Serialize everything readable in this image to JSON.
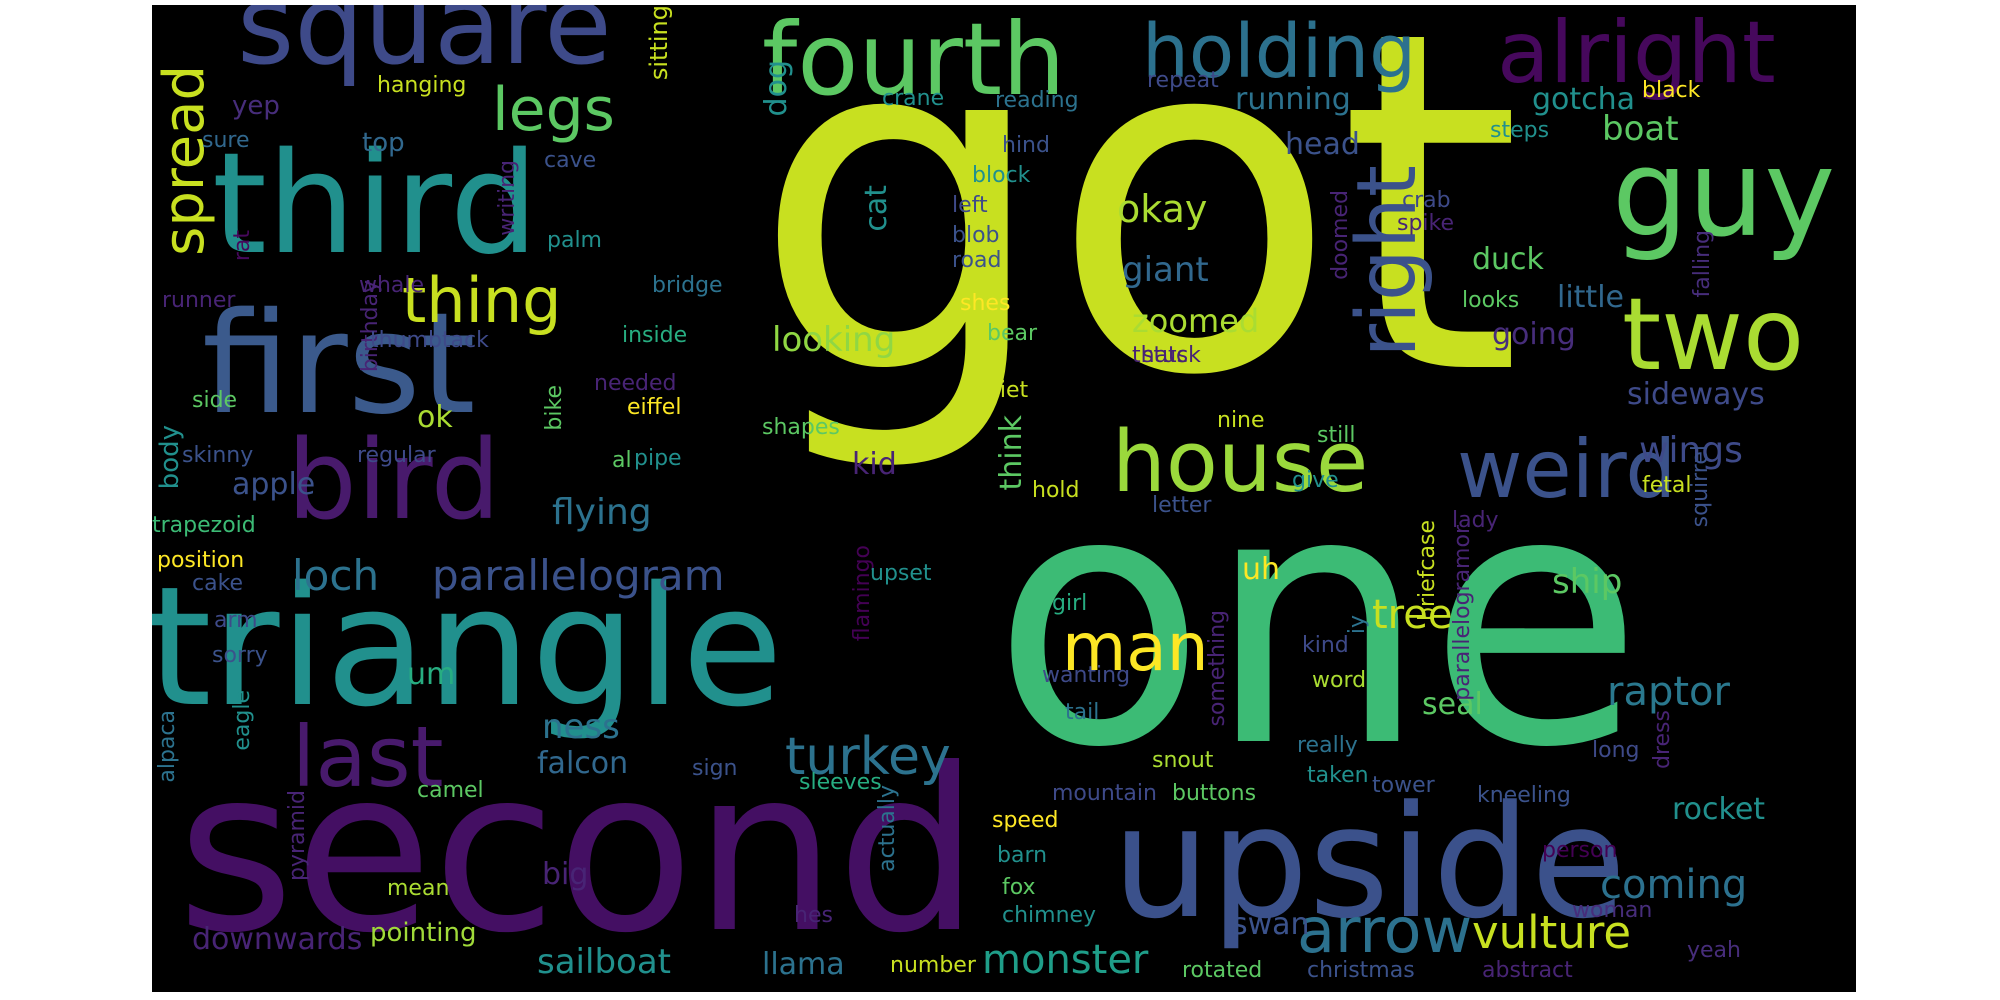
{
  "colors": {
    "background": "#000000",
    "page": "#ffffff",
    "palette": [
      "#440154",
      "#472c7a",
      "#3b518b",
      "#2c718e",
      "#21908d",
      "#27ad81",
      "#5cc863",
      "#aadc32",
      "#c8e020",
      "#fde725"
    ]
  },
  "words": [
    {
      "text": "got",
      "color": "#c8e020",
      "vertical": false
    },
    {
      "text": "one",
      "color": "#3cbb75",
      "vertical": false
    },
    {
      "text": "second",
      "color": "#440f63",
      "vertical": false
    },
    {
      "text": "triangle",
      "color": "#21908d",
      "vertical": false
    },
    {
      "text": "upside",
      "color": "#3b518b",
      "vertical": false
    },
    {
      "text": "third",
      "color": "#21908d",
      "vertical": false
    },
    {
      "text": "first",
      "color": "#3b5a8c",
      "vertical": false
    },
    {
      "text": "square",
      "color": "#3e4a89",
      "vertical": false
    },
    {
      "text": "fourth",
      "color": "#5cc863",
      "vertical": false
    },
    {
      "text": "holding",
      "color": "#2c718e",
      "vertical": false
    },
    {
      "text": "alright",
      "color": "#46085c",
      "vertical": false
    },
    {
      "text": "guy",
      "color": "#5cc863",
      "vertical": false
    },
    {
      "text": "bird",
      "color": "#481a6c",
      "vertical": false
    },
    {
      "text": "two",
      "color": "#aadc32",
      "vertical": false
    },
    {
      "text": "house",
      "color": "#9bd93c",
      "vertical": false
    },
    {
      "text": "right",
      "color": "#3b528b",
      "vertical": true
    },
    {
      "text": "weird",
      "color": "#3b528b",
      "vertical": false
    },
    {
      "text": "last",
      "color": "#481a6c",
      "vertical": false
    },
    {
      "text": "man",
      "color": "#fde725",
      "vertical": false
    },
    {
      "text": "arrow",
      "color": "#2c718e",
      "vertical": false
    },
    {
      "text": "legs",
      "color": "#5cc863",
      "vertical": false
    },
    {
      "text": "thing",
      "color": "#c8e020",
      "vertical": false
    },
    {
      "text": "spread",
      "color": "#c8e020",
      "vertical": true
    },
    {
      "text": "loch",
      "color": "#2c728e",
      "vertical": false
    },
    {
      "text": "parallelogram",
      "color": "#3b528b",
      "vertical": false
    },
    {
      "text": "turkey",
      "color": "#2c728e",
      "vertical": false
    },
    {
      "text": "vulture",
      "color": "#c8e020",
      "vertical": false
    },
    {
      "text": "monster",
      "color": "#1f9e89",
      "vertical": false
    },
    {
      "text": "sailboat",
      "color": "#21908d",
      "vertical": false
    },
    {
      "text": "tree",
      "color": "#c8e020",
      "vertical": false
    },
    {
      "text": "raptor",
      "color": "#2a788e",
      "vertical": false
    },
    {
      "text": "coming",
      "color": "#2c718e",
      "vertical": false
    },
    {
      "text": "okay",
      "color": "#aadc32",
      "vertical": false
    },
    {
      "text": "giant",
      "color": "#31688e",
      "vertical": false
    },
    {
      "text": "zoomed",
      "color": "#aadc32",
      "vertical": false
    },
    {
      "text": "looking",
      "color": "#90d743",
      "vertical": false
    },
    {
      "text": "flying",
      "color": "#2c728e",
      "vertical": false
    },
    {
      "text": "wings",
      "color": "#3e4a89",
      "vertical": false
    },
    {
      "text": "boat",
      "color": "#5cc863",
      "vertical": false
    },
    {
      "text": "gotcha",
      "color": "#21908d",
      "vertical": false
    },
    {
      "text": "running",
      "color": "#2c728e",
      "vertical": false
    },
    {
      "text": "head",
      "color": "#3b528b",
      "vertical": false
    },
    {
      "text": "duck",
      "color": "#5cc863",
      "vertical": false
    },
    {
      "text": "little",
      "color": "#31688e",
      "vertical": false
    },
    {
      "text": "going",
      "color": "#472d7b",
      "vertical": false
    },
    {
      "text": "sideways",
      "color": "#3e4a89",
      "vertical": false
    },
    {
      "text": "ship",
      "color": "#5cc863",
      "vertical": false
    },
    {
      "text": "seal",
      "color": "#5cc863",
      "vertical": false
    },
    {
      "text": "rocket",
      "color": "#21908d",
      "vertical": false
    },
    {
      "text": "ness",
      "color": "#2c728e",
      "vertical": false
    },
    {
      "text": "falcon",
      "color": "#31688e",
      "vertical": false
    },
    {
      "text": "apple",
      "color": "#3b528b",
      "vertical": false
    },
    {
      "text": "swan",
      "color": "#3b528b",
      "vertical": false
    },
    {
      "text": "llama",
      "color": "#2c728e",
      "vertical": false
    },
    {
      "text": "big",
      "color": "#482475",
      "vertical": false
    },
    {
      "text": "downwards",
      "color": "#482475",
      "vertical": false
    },
    {
      "text": "pointing",
      "color": "#a0da39",
      "vertical": false
    },
    {
      "text": "ok",
      "color": "#aadc32",
      "vertical": false
    },
    {
      "text": "um",
      "color": "#27ad81",
      "vertical": false
    },
    {
      "text": "uh",
      "color": "#fde725",
      "vertical": false
    },
    {
      "text": "kid",
      "color": "#482475",
      "vertical": false
    },
    {
      "text": "cat",
      "color": "#21908d",
      "vertical": true
    },
    {
      "text": "dog",
      "color": "#21908d",
      "vertical": true
    },
    {
      "text": "yep",
      "color": "#472d7b",
      "vertical": false
    },
    {
      "text": "top",
      "color": "#31688e",
      "vertical": false
    },
    {
      "text": "think",
      "color": "#5cc863",
      "vertical": true
    },
    {
      "text": "body",
      "color": "#21908d",
      "vertical": true
    },
    {
      "text": "sitting",
      "color": "#c8e020",
      "vertical": true
    },
    {
      "text": "hanging",
      "color": "#c8e020",
      "vertical": false
    },
    {
      "text": "sure",
      "color": "#31688e",
      "vertical": false
    },
    {
      "text": "cave",
      "color": "#3b528b",
      "vertical": false
    },
    {
      "text": "writing",
      "color": "#482475",
      "vertical": true
    },
    {
      "text": "palm",
      "color": "#21908d",
      "vertical": false
    },
    {
      "text": "rat",
      "color": "#46085c",
      "vertical": true
    },
    {
      "text": "whale",
      "color": "#482475",
      "vertical": false
    },
    {
      "text": "runner",
      "color": "#482475",
      "vertical": false
    },
    {
      "text": "bridge",
      "color": "#2c728e",
      "vertical": false
    },
    {
      "text": "birthday",
      "color": "#482475",
      "vertical": true
    },
    {
      "text": "thumbtack",
      "color": "#3e4a89",
      "vertical": false
    },
    {
      "text": "inside",
      "color": "#27ad81",
      "vertical": false
    },
    {
      "text": "side",
      "color": "#5cc863",
      "vertical": false
    },
    {
      "text": "needed",
      "color": "#482475",
      "vertical": false
    },
    {
      "text": "eiffel",
      "color": "#fde725",
      "vertical": false
    },
    {
      "text": "skinny",
      "color": "#3b528b",
      "vertical": false
    },
    {
      "text": "regular",
      "color": "#3e4a89",
      "vertical": false
    },
    {
      "text": "bike",
      "color": "#5cc863",
      "vertical": true
    },
    {
      "text": "al",
      "color": "#5cc863",
      "vertical": false
    },
    {
      "text": "pipe",
      "color": "#21908d",
      "vertical": false
    },
    {
      "text": "shapes",
      "color": "#5cc863",
      "vertical": false
    },
    {
      "text": "trapezoid",
      "color": "#3cbb75",
      "vertical": false
    },
    {
      "text": "position",
      "color": "#fde725",
      "vertical": false
    },
    {
      "text": "cake",
      "color": "#3b528b",
      "vertical": false
    },
    {
      "text": "arm",
      "color": "#3e4a89",
      "vertical": false
    },
    {
      "text": "sorry",
      "color": "#3b528b",
      "vertical": false
    },
    {
      "text": "eagle",
      "color": "#21908d",
      "vertical": true
    },
    {
      "text": "alpaca",
      "color": "#2c728e",
      "vertical": true
    },
    {
      "text": "pyramid",
      "color": "#482475",
      "vertical": true
    },
    {
      "text": "camel",
      "color": "#5cc863",
      "vertical": false
    },
    {
      "text": "mean",
      "color": "#aadc32",
      "vertical": false
    },
    {
      "text": "sign",
      "color": "#3b528b",
      "vertical": false
    },
    {
      "text": "sleeves",
      "color": "#27ad81",
      "vertical": false
    },
    {
      "text": "actually",
      "color": "#2c728e",
      "vertical": true
    },
    {
      "text": "hes",
      "color": "#482475",
      "vertical": false
    },
    {
      "text": "flamingo",
      "color": "#440154",
      "vertical": true
    },
    {
      "text": "upset",
      "color": "#21908d",
      "vertical": false
    },
    {
      "text": "number",
      "color": "#c8e020",
      "vertical": false
    },
    {
      "text": "crane",
      "color": "#21908d",
      "vertical": false
    },
    {
      "text": "reading",
      "color": "#2c728e",
      "vertical": false
    },
    {
      "text": "repeat",
      "color": "#3e4a89",
      "vertical": false
    },
    {
      "text": "hind",
      "color": "#3b528b",
      "vertical": false
    },
    {
      "text": "block",
      "color": "#21908d",
      "vertical": false
    },
    {
      "text": "left",
      "color": "#3e4a89",
      "vertical": false
    },
    {
      "text": "blob",
      "color": "#3b528b",
      "vertical": false
    },
    {
      "text": "road",
      "color": "#3b528b",
      "vertical": false
    },
    {
      "text": "shes",
      "color": "#fde725",
      "vertical": false
    },
    {
      "text": "bear",
      "color": "#5cc863",
      "vertical": false
    },
    {
      "text": "stuck",
      "color": "#482475",
      "vertical": false
    },
    {
      "text": "thats",
      "color": "#482475",
      "vertical": false
    },
    {
      "text": "quiet",
      "color": "#c8e020",
      "vertical": false
    },
    {
      "text": "nine",
      "color": "#c8e020",
      "vertical": false
    },
    {
      "text": "still",
      "color": "#5cc863",
      "vertical": false
    },
    {
      "text": "hold",
      "color": "#c8e020",
      "vertical": false
    },
    {
      "text": "give",
      "color": "#21908d",
      "vertical": false
    },
    {
      "text": "letter",
      "color": "#3b528b",
      "vertical": false
    },
    {
      "text": "girl",
      "color": "#27ad81",
      "vertical": false
    },
    {
      "text": "wanting",
      "color": "#3e4a89",
      "vertical": false
    },
    {
      "text": "tail",
      "color": "#2c728e",
      "vertical": false
    },
    {
      "text": "something",
      "color": "#482475",
      "vertical": true
    },
    {
      "text": "snout",
      "color": "#aadc32",
      "vertical": false
    },
    {
      "text": "speed",
      "color": "#fde725",
      "vertical": false
    },
    {
      "text": "barn",
      "color": "#21908d",
      "vertical": false
    },
    {
      "text": "fox",
      "color": "#5cc863",
      "vertical": false
    },
    {
      "text": "chimney",
      "color": "#21908d",
      "vertical": false
    },
    {
      "text": "mountain",
      "color": "#3e4a89",
      "vertical": false
    },
    {
      "text": "buttons",
      "color": "#5cc863",
      "vertical": false
    },
    {
      "text": "rotated",
      "color": "#5cc863",
      "vertical": false
    },
    {
      "text": "tower",
      "color": "#3b528b",
      "vertical": false
    },
    {
      "text": "kneeling",
      "color": "#3b528b",
      "vertical": false
    },
    {
      "text": "person",
      "color": "#440154",
      "vertical": false
    },
    {
      "text": "woman",
      "color": "#472d7b",
      "vertical": false
    },
    {
      "text": "christmas",
      "color": "#3b528b",
      "vertical": false
    },
    {
      "text": "abstract",
      "color": "#482475",
      "vertical": false
    },
    {
      "text": "yeah",
      "color": "#472d7b",
      "vertical": false
    },
    {
      "text": "taken",
      "color": "#21908d",
      "vertical": false
    },
    {
      "text": "really",
      "color": "#2c728e",
      "vertical": false
    },
    {
      "text": "word",
      "color": "#aadc32",
      "vertical": false
    },
    {
      "text": "kind",
      "color": "#3e4a89",
      "vertical": false
    },
    {
      "text": "iy",
      "color": "#2c728e",
      "vertical": true
    },
    {
      "text": "briefcase",
      "color": "#c8e020",
      "vertical": true
    },
    {
      "text": "parallelogramor",
      "color": "#482475",
      "vertical": true
    },
    {
      "text": "lady",
      "color": "#482475",
      "vertical": false
    },
    {
      "text": "fetal",
      "color": "#c8e020",
      "vertical": false
    },
    {
      "text": "squirrel",
      "color": "#3b528b",
      "vertical": true
    },
    {
      "text": "long",
      "color": "#3e4a89",
      "vertical": false
    },
    {
      "text": "dress",
      "color": "#482475",
      "vertical": true
    },
    {
      "text": "crab",
      "color": "#3e4a89",
      "vertical": false
    },
    {
      "text": "spike",
      "color": "#482475",
      "vertical": false
    },
    {
      "text": "looks",
      "color": "#5cc863",
      "vertical": false
    },
    {
      "text": "doomed",
      "color": "#482475",
      "vertical": true
    },
    {
      "text": "falling",
      "color": "#472d7b",
      "vertical": true
    },
    {
      "text": "steps",
      "color": "#21908d",
      "vertical": false
    },
    {
      "text": "black",
      "color": "#fde725",
      "vertical": false
    },
    {
      "text": "x1",
      "color": "#c8e020",
      "vertical": false
    }
  ]
}
